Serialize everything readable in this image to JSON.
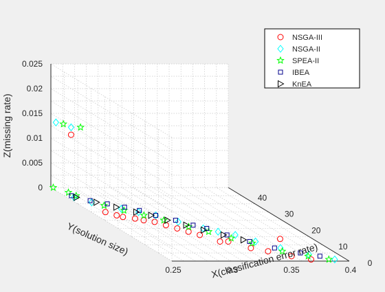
{
  "chart_data": {
    "type": "scatter",
    "title": "",
    "xlabel": "X(classification error rate)",
    "ylabel": "Y(solution size)",
    "zlabel": "Z(missing rate)",
    "xlim": [
      0.25,
      0.4
    ],
    "ylim": [
      0,
      45
    ],
    "zlim": [
      0,
      0.025
    ],
    "xticks": [
      "0.25",
      "0.3",
      "0.35",
      "0.4"
    ],
    "yticks": [
      "0",
      "10",
      "20",
      "30",
      "40"
    ],
    "zticks": [
      "0",
      "0.005",
      "0.01",
      "0.015",
      "0.02",
      "0.025"
    ],
    "grid": true,
    "legend_position": "top-right",
    "series": [
      {
        "name": "NSGA-III",
        "marker": "circle",
        "color": "#ff0000",
        "points": [
          [
            0.258,
            41,
            0.012
          ],
          [
            0.362,
            9,
            0.0015
          ],
          [
            0.262,
            30,
            0.0
          ],
          [
            0.267,
            28,
            0.0
          ],
          [
            0.27,
            27,
            0.0
          ],
          [
            0.278,
            26,
            0.0
          ],
          [
            0.283,
            25,
            0.0
          ],
          [
            0.29,
            24,
            0.0
          ],
          [
            0.295,
            22,
            0.0
          ],
          [
            0.3,
            20,
            0.0
          ],
          [
            0.305,
            18,
            0.0
          ],
          [
            0.31,
            16,
            0.0
          ],
          [
            0.318,
            12,
            0.0
          ],
          [
            0.325,
            12,
            0.0
          ],
          [
            0.335,
            8,
            0.0
          ],
          [
            0.345,
            6,
            0.0
          ],
          [
            0.358,
            3,
            0.0
          ],
          [
            0.37,
            1,
            0.0
          ]
        ]
      },
      {
        "name": "NSGA-II",
        "marker": "diamond",
        "color": "#00ffff",
        "points": [
          [
            0.252,
            44,
            0.0135
          ],
          [
            0.258,
            41,
            0.0135
          ],
          [
            0.256,
            39,
            0.0
          ],
          [
            0.264,
            36,
            0.0
          ],
          [
            0.28,
            32,
            0.0
          ],
          [
            0.29,
            30,
            0.0
          ],
          [
            0.3,
            28,
            0.0
          ],
          [
            0.31,
            24,
            0.0
          ],
          [
            0.322,
            20,
            0.0
          ],
          [
            0.33,
            18,
            0.0
          ],
          [
            0.34,
            16,
            0.0
          ],
          [
            0.348,
            12,
            0.0
          ],
          [
            0.36,
            8,
            0.0
          ],
          [
            0.375,
            4,
            0.0
          ],
          [
            0.39,
            1,
            0.0
          ]
        ]
      },
      {
        "name": "SPEA-II",
        "marker": "star",
        "color": "#00ff00",
        "points": [
          [
            0.256,
            43,
            0.0135
          ],
          [
            0.266,
            41,
            0.0135
          ],
          [
            0.252,
            45,
            0.0
          ],
          [
            0.258,
            42,
            0.0
          ],
          [
            0.26,
            40,
            0.0
          ],
          [
            0.27,
            34,
            0.0
          ],
          [
            0.28,
            31,
            0.0
          ],
          [
            0.29,
            28,
            0.0
          ],
          [
            0.3,
            25,
            0.0
          ],
          [
            0.312,
            21,
            0.0
          ],
          [
            0.322,
            18,
            0.0
          ],
          [
            0.332,
            14,
            0.0
          ],
          [
            0.343,
            11,
            0.0
          ],
          [
            0.357,
            6,
            0.0
          ],
          [
            0.372,
            3,
            0.0
          ],
          [
            0.385,
            1,
            0.0
          ]
        ]
      },
      {
        "name": "IBEA",
        "marker": "square",
        "color": "#00008b",
        "points": [
          [
            0.256,
            40,
            0.0
          ],
          [
            0.265,
            37,
            0.0
          ],
          [
            0.275,
            35,
            0.0
          ],
          [
            0.285,
            33,
            0.0
          ],
          [
            0.293,
            31,
            0.0
          ],
          [
            0.3,
            28,
            0.0
          ],
          [
            0.31,
            25,
            0.0
          ],
          [
            0.318,
            22,
            0.0
          ],
          [
            0.325,
            20,
            0.0
          ],
          [
            0.333,
            16,
            0.0
          ],
          [
            0.343,
            12,
            0.0
          ],
          [
            0.355,
            8,
            0.0
          ],
          [
            0.37,
            5,
            0.0
          ],
          [
            0.382,
            3,
            0.0
          ]
        ]
      },
      {
        "name": "KnEA",
        "marker": "triangle-right",
        "color": "#000000",
        "points": [
          [
            0.258,
            39,
            0.0
          ],
          [
            0.268,
            36,
            0.0
          ],
          [
            0.278,
            33,
            0.0
          ],
          [
            0.288,
            30,
            0.0
          ],
          [
            0.296,
            28,
            0.0
          ],
          [
            0.303,
            25,
            0.0
          ],
          [
            0.312,
            22,
            0.0
          ],
          [
            0.32,
            19,
            0.0
          ],
          [
            0.33,
            16,
            0.0
          ],
          [
            0.34,
            13,
            0.0
          ]
        ]
      }
    ]
  }
}
